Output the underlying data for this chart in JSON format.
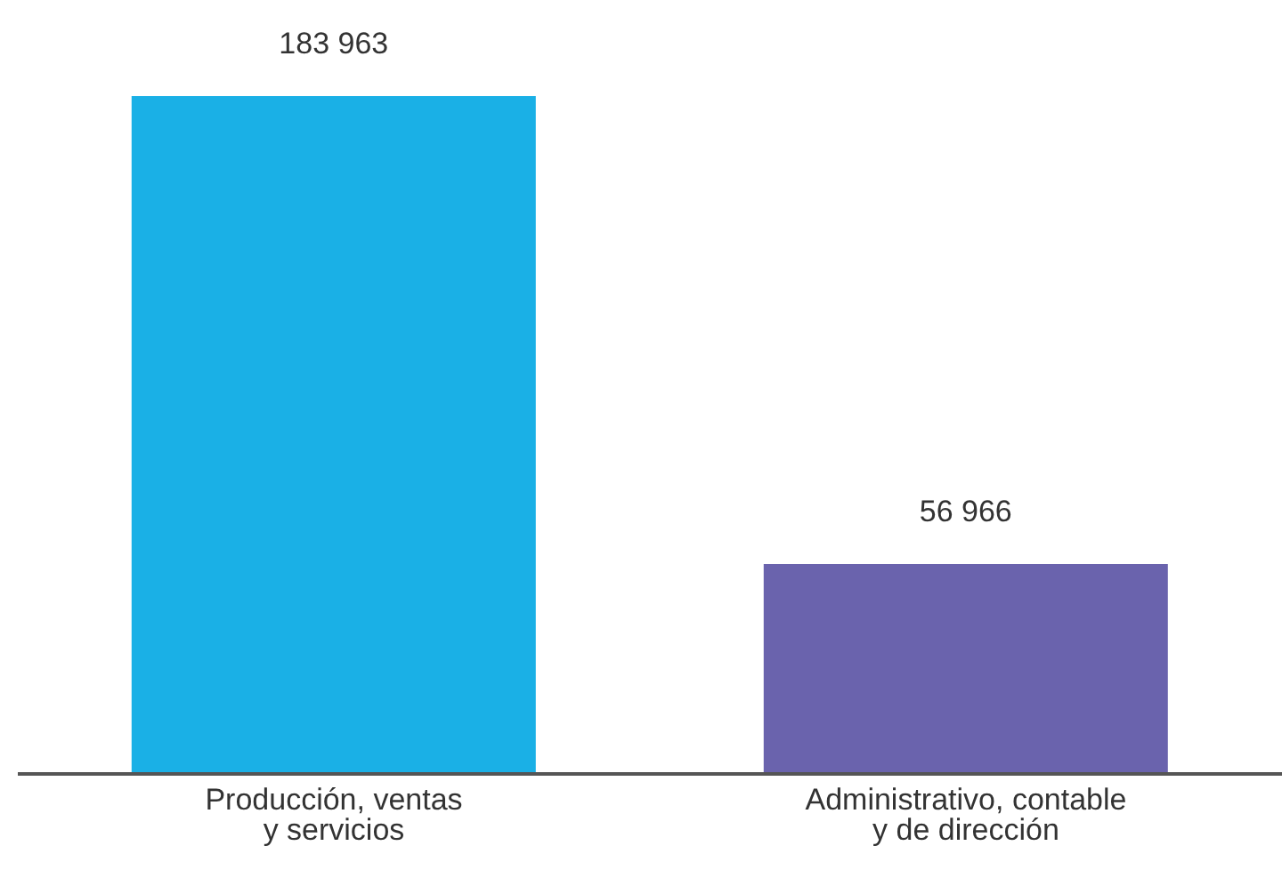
{
  "chart_data": {
    "type": "bar",
    "categories": [
      "Producción, ventas\ny servicios",
      "Administrativo, contable\ny de dirección"
    ],
    "values": [
      183963,
      56966
    ],
    "colors": [
      "#1ab0e6",
      "#6a63ad"
    ],
    "value_labels": [
      "183 963",
      "56 966"
    ]
  }
}
